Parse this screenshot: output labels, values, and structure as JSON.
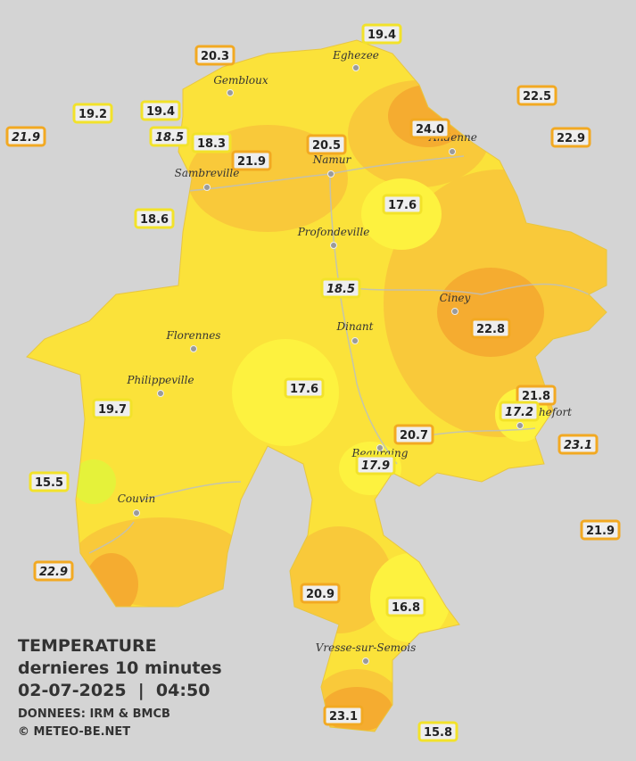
{
  "legend": {
    "title": "TEMPERATURE",
    "subtitle": "dernieres 10 minutes",
    "datetime": "02-07-2025  |  04:50",
    "source": "DONNEES: IRM & BMCB",
    "credit": "© METEO-BE.NET"
  },
  "towns": [
    "Eghezee",
    "Gembloux",
    "Sambreville",
    "Namur",
    "Andenne",
    "Profondeville",
    "Ciney",
    "Dinant",
    "Florennes",
    "Philippeville",
    "Rochefort",
    "Beauraing",
    "Couvin",
    "Vresse-sur-Semois"
  ],
  "stations": [
    {
      "label": "19.4"
    },
    {
      "label": "20.3"
    },
    {
      "label": "22.5"
    },
    {
      "label": "19.2"
    },
    {
      "label": "19.4"
    },
    {
      "label": "21.9",
      "italic": true
    },
    {
      "label": "18.5",
      "italic": true
    },
    {
      "label": "18.3"
    },
    {
      "label": "24.0"
    },
    {
      "label": "20.5"
    },
    {
      "label": "22.9"
    },
    {
      "label": "21.9"
    },
    {
      "label": "18.6"
    },
    {
      "label": "17.6"
    },
    {
      "label": "18.5",
      "italic": true
    },
    {
      "label": "22.8"
    },
    {
      "label": "21.8"
    },
    {
      "label": "17.2",
      "italic": true
    },
    {
      "label": "17.6"
    },
    {
      "label": "19.7"
    },
    {
      "label": "20.7"
    },
    {
      "label": "23.1",
      "italic": true
    },
    {
      "label": "17.9",
      "italic": true
    },
    {
      "label": "15.5"
    },
    {
      "label": "21.9"
    },
    {
      "label": "22.9",
      "italic": true
    },
    {
      "label": "20.9"
    },
    {
      "label": "16.8"
    },
    {
      "label": "23.1"
    },
    {
      "label": "15.8"
    }
  ]
}
